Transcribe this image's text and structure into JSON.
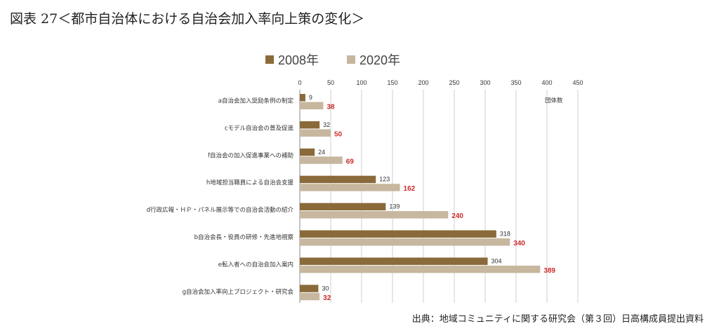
{
  "figure_title": "図表 27＜都市自治体における自治会加入率向上策の変化＞",
  "source_note": "出典：地域コミュニティに関する研究会（第３回）日高構成員提出資料",
  "colors": {
    "series_2008": "#8a6a3a",
    "series_2020": "#c7b79f",
    "highlight_label": "#cc2a2a",
    "grid": "#cfcfcf"
  },
  "chart_data": {
    "type": "bar",
    "orientation": "horizontal",
    "unit_label": "団体数",
    "xlim": [
      0,
      450
    ],
    "ticks": [
      0,
      50,
      100,
      150,
      200,
      250,
      300,
      350,
      400,
      450
    ],
    "grid": true,
    "legend_position": "top",
    "categories": [
      "a自治会加入奨励条例の制定",
      "cモデル自治会の普及促進",
      "f自治会の加入促進事業への補助",
      "h地域担当職員による自治会支援",
      "d行政広報・ＨＰ・パネル展示等での自治会活動の紹介",
      "b自治会長・役員の研修・先進地視察",
      "e転入者への自治会加入案内",
      "g自治会加入率向上プロジェクト・研究会"
    ],
    "series": [
      {
        "name": "2008年",
        "values": [
          9,
          32,
          24,
          123,
          139,
          318,
          304,
          30
        ]
      },
      {
        "name": "2020年",
        "values": [
          38,
          50,
          69,
          162,
          240,
          340,
          389,
          32
        ]
      }
    ]
  }
}
